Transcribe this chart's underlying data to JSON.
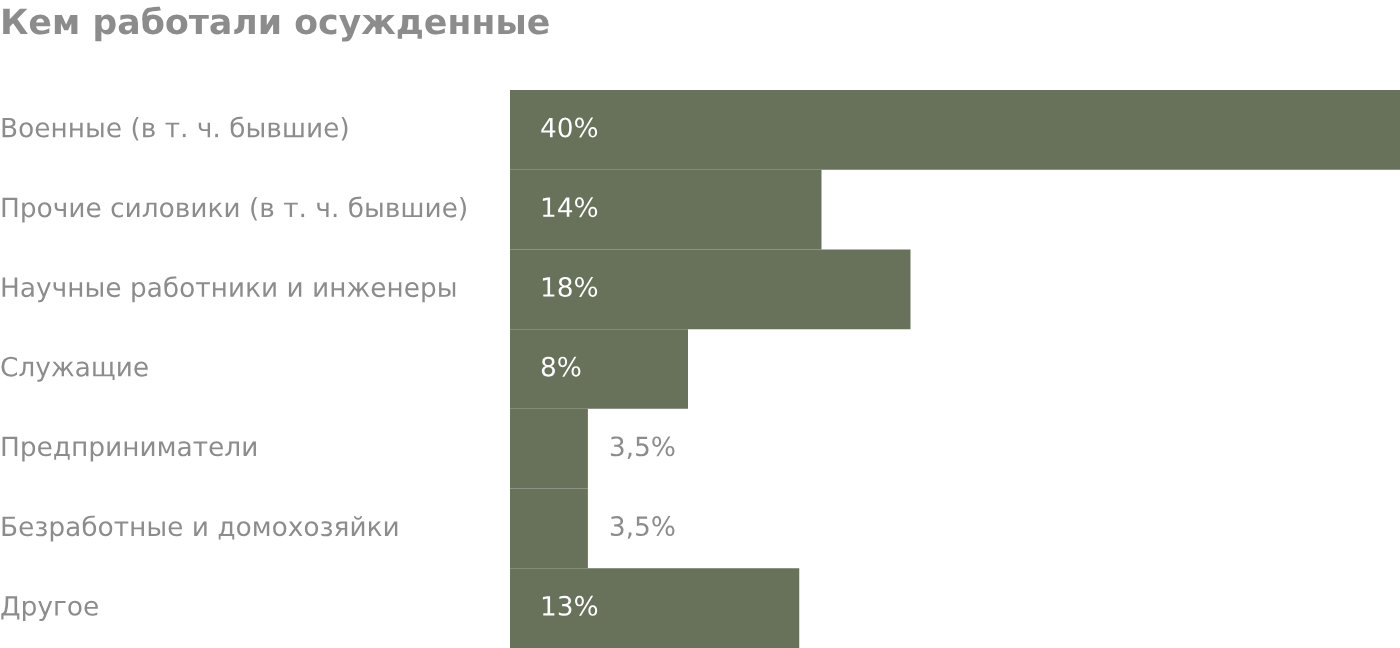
{
  "chart_data": {
    "type": "bar",
    "orientation": "horizontal",
    "title": "Кем работали осужденные",
    "categories": [
      "Военные (в т. ч. бывшие)",
      "Прочие силовики (в т. ч. бывшие)",
      "Научные работники и инженеры",
      "Служащие",
      "Предприниматели",
      "Безработные и домохозяйки",
      "Другое"
    ],
    "values": [
      40,
      14,
      18,
      8,
      3.5,
      3.5,
      13
    ],
    "value_labels": [
      "40%",
      "14%",
      "18%",
      "8%",
      "3,5%",
      "3,5%",
      "13%"
    ],
    "color": "#68715a"
  }
}
